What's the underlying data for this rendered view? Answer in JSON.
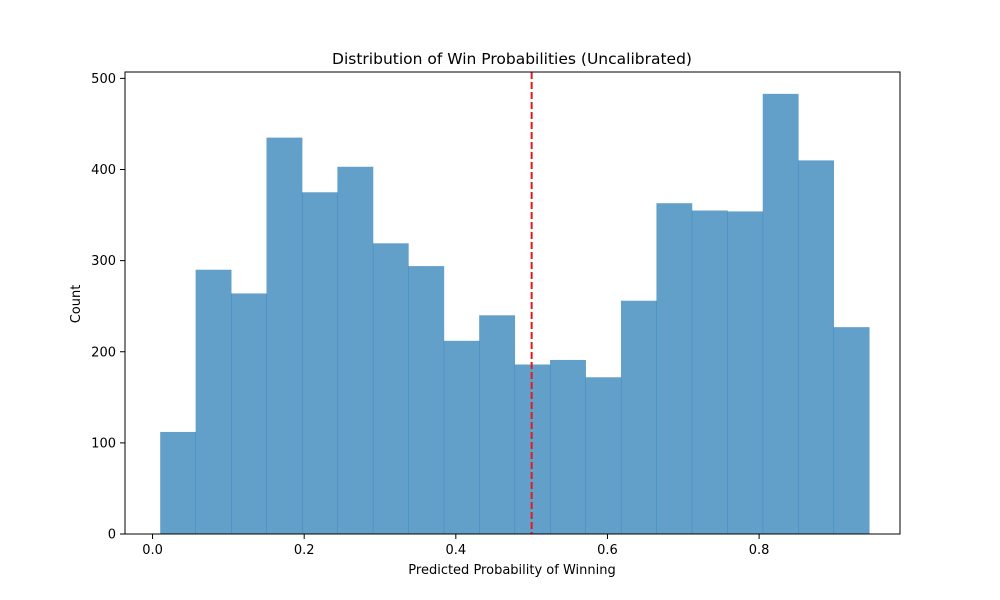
{
  "chart_data": {
    "type": "bar",
    "title": "Distribution of Win Probabilities (Uncalibrated)",
    "xlabel": "Predicted Probability of Winning",
    "ylabel": "Count",
    "xlim": [
      -0.03634,
      0.98584
    ],
    "ylim": [
      0,
      507
    ],
    "xticks": [
      {
        "value": 0.0,
        "label": "0.0"
      },
      {
        "value": 0.2,
        "label": "0.2"
      },
      {
        "value": 0.4,
        "label": "0.4"
      },
      {
        "value": 0.6,
        "label": "0.6"
      },
      {
        "value": 0.8,
        "label": "0.8"
      }
    ],
    "yticks": [
      {
        "value": 0,
        "label": "0"
      },
      {
        "value": 100,
        "label": "100"
      },
      {
        "value": 200,
        "label": "200"
      },
      {
        "value": 300,
        "label": "300"
      },
      {
        "value": 400,
        "label": "400"
      },
      {
        "value": 500,
        "label": "500"
      }
    ],
    "bins": [
      {
        "x0": 0.0101,
        "x1": 0.0568,
        "count": 112
      },
      {
        "x0": 0.0568,
        "x1": 0.1036,
        "count": 290
      },
      {
        "x0": 0.1036,
        "x1": 0.1503,
        "count": 264
      },
      {
        "x0": 0.1503,
        "x1": 0.1971,
        "count": 435
      },
      {
        "x0": 0.1971,
        "x1": 0.2438,
        "count": 375
      },
      {
        "x0": 0.2438,
        "x1": 0.2906,
        "count": 403
      },
      {
        "x0": 0.2906,
        "x1": 0.3373,
        "count": 319
      },
      {
        "x0": 0.3373,
        "x1": 0.3841,
        "count": 294
      },
      {
        "x0": 0.3841,
        "x1": 0.4308,
        "count": 212
      },
      {
        "x0": 0.4308,
        "x1": 0.4776,
        "count": 240
      },
      {
        "x0": 0.4776,
        "x1": 0.5243,
        "count": 186
      },
      {
        "x0": 0.5243,
        "x1": 0.5711,
        "count": 191
      },
      {
        "x0": 0.5711,
        "x1": 0.6178,
        "count": 172
      },
      {
        "x0": 0.6178,
        "x1": 0.6646,
        "count": 256
      },
      {
        "x0": 0.6646,
        "x1": 0.7113,
        "count": 363
      },
      {
        "x0": 0.7113,
        "x1": 0.7581,
        "count": 355
      },
      {
        "x0": 0.7581,
        "x1": 0.8048,
        "count": 354
      },
      {
        "x0": 0.8048,
        "x1": 0.8516,
        "count": 483
      },
      {
        "x0": 0.8516,
        "x1": 0.8983,
        "count": 410
      },
      {
        "x0": 0.8983,
        "x1": 0.9451,
        "count": 227
      }
    ],
    "threshold": {
      "value": 0.5,
      "style": "dashed",
      "color": "#e31a1c"
    },
    "grid": false,
    "colors": {
      "bar": "#1f77b4",
      "bar_opacity": 0.7,
      "threshold_line": "#e31a1c",
      "axes": "#000000"
    }
  }
}
